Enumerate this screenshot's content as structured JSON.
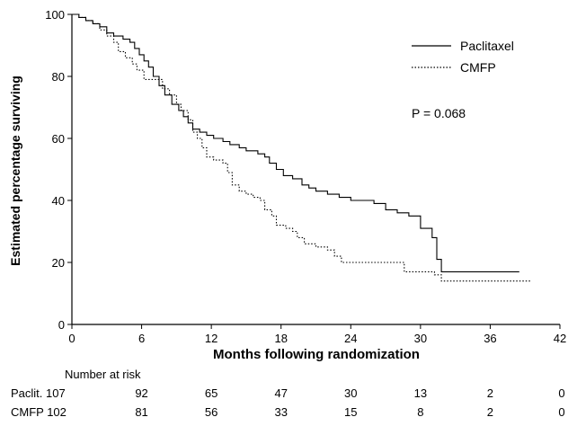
{
  "chart_data": {
    "type": "line",
    "xlabel": "Months following randomization",
    "ylabel": "Estimated percentage surviving",
    "xlim": [
      0,
      42
    ],
    "ylim": [
      0,
      100
    ],
    "x_ticks": [
      0,
      6,
      12,
      18,
      24,
      30,
      36,
      42
    ],
    "y_ticks": [
      0,
      20,
      40,
      60,
      80,
      100
    ],
    "legend_position": "top-right",
    "annotation": "P = 0.068",
    "series": [
      {
        "name": "Paclitaxel",
        "style": "solid",
        "points": [
          [
            0,
            100
          ],
          [
            0.6,
            99
          ],
          [
            1.2,
            98
          ],
          [
            1.8,
            97
          ],
          [
            2.4,
            96
          ],
          [
            3,
            94
          ],
          [
            3.6,
            93
          ],
          [
            4.4,
            92
          ],
          [
            5,
            91
          ],
          [
            5.4,
            89
          ],
          [
            5.8,
            87
          ],
          [
            6.2,
            85
          ],
          [
            6.6,
            83
          ],
          [
            7,
            80
          ],
          [
            7.5,
            77
          ],
          [
            8,
            74
          ],
          [
            8.6,
            71
          ],
          [
            9.2,
            69
          ],
          [
            9.6,
            67
          ],
          [
            10,
            65
          ],
          [
            10.4,
            63
          ],
          [
            11,
            62
          ],
          [
            11.6,
            61
          ],
          [
            12.2,
            60
          ],
          [
            13,
            59
          ],
          [
            13.6,
            58
          ],
          [
            14.4,
            57
          ],
          [
            15,
            56
          ],
          [
            16,
            55
          ],
          [
            16.6,
            54
          ],
          [
            17,
            52
          ],
          [
            17.6,
            50
          ],
          [
            18.2,
            48
          ],
          [
            19,
            47
          ],
          [
            19.8,
            45
          ],
          [
            20.4,
            44
          ],
          [
            21,
            43
          ],
          [
            22,
            42
          ],
          [
            23,
            41
          ],
          [
            24,
            40
          ],
          [
            25,
            40
          ],
          [
            26,
            39
          ],
          [
            27,
            37
          ],
          [
            28,
            36
          ],
          [
            29,
            35
          ],
          [
            30,
            31
          ],
          [
            31,
            28
          ],
          [
            31.4,
            21
          ],
          [
            31.8,
            17
          ],
          [
            38.5,
            17
          ]
        ]
      },
      {
        "name": "CMFP",
        "style": "dotted",
        "points": [
          [
            0,
            100
          ],
          [
            0.6,
            99
          ],
          [
            1.2,
            98
          ],
          [
            1.8,
            97
          ],
          [
            2.4,
            95
          ],
          [
            3,
            93
          ],
          [
            3.6,
            91
          ],
          [
            4,
            88
          ],
          [
            4.6,
            86
          ],
          [
            5.2,
            84
          ],
          [
            5.6,
            82
          ],
          [
            6.2,
            79
          ],
          [
            7.4,
            79
          ],
          [
            7.8,
            76
          ],
          [
            8.4,
            74
          ],
          [
            9,
            71
          ],
          [
            9.4,
            69
          ],
          [
            10,
            66
          ],
          [
            10.4,
            62
          ],
          [
            10.8,
            60
          ],
          [
            11.2,
            57
          ],
          [
            11.6,
            54
          ],
          [
            12.2,
            53
          ],
          [
            13,
            52
          ],
          [
            13.4,
            49
          ],
          [
            13.8,
            45
          ],
          [
            14.4,
            43
          ],
          [
            15,
            42
          ],
          [
            15.6,
            41
          ],
          [
            16.2,
            40
          ],
          [
            16.6,
            37
          ],
          [
            17.2,
            35
          ],
          [
            17.6,
            32
          ],
          [
            18.4,
            31
          ],
          [
            19,
            30
          ],
          [
            19.4,
            28
          ],
          [
            20,
            26
          ],
          [
            21,
            25
          ],
          [
            22,
            24
          ],
          [
            22.6,
            22
          ],
          [
            23.2,
            20
          ],
          [
            28,
            20
          ],
          [
            28.6,
            17
          ],
          [
            30.5,
            17
          ],
          [
            31.2,
            16
          ],
          [
            31.8,
            14
          ],
          [
            39.5,
            14
          ]
        ]
      }
    ],
    "risk_table": {
      "header": "Number at risk",
      "times": [
        0,
        6,
        12,
        18,
        24,
        30,
        36,
        42
      ],
      "rows": [
        {
          "label": "Paclit. 107",
          "values": [
            "92",
            "65",
            "47",
            "30",
            "13",
            "2",
            "0"
          ]
        },
        {
          "label": "CMFP 102",
          "values": [
            "81",
            "56",
            "33",
            "15",
            "8",
            "2",
            "0"
          ]
        }
      ]
    }
  }
}
